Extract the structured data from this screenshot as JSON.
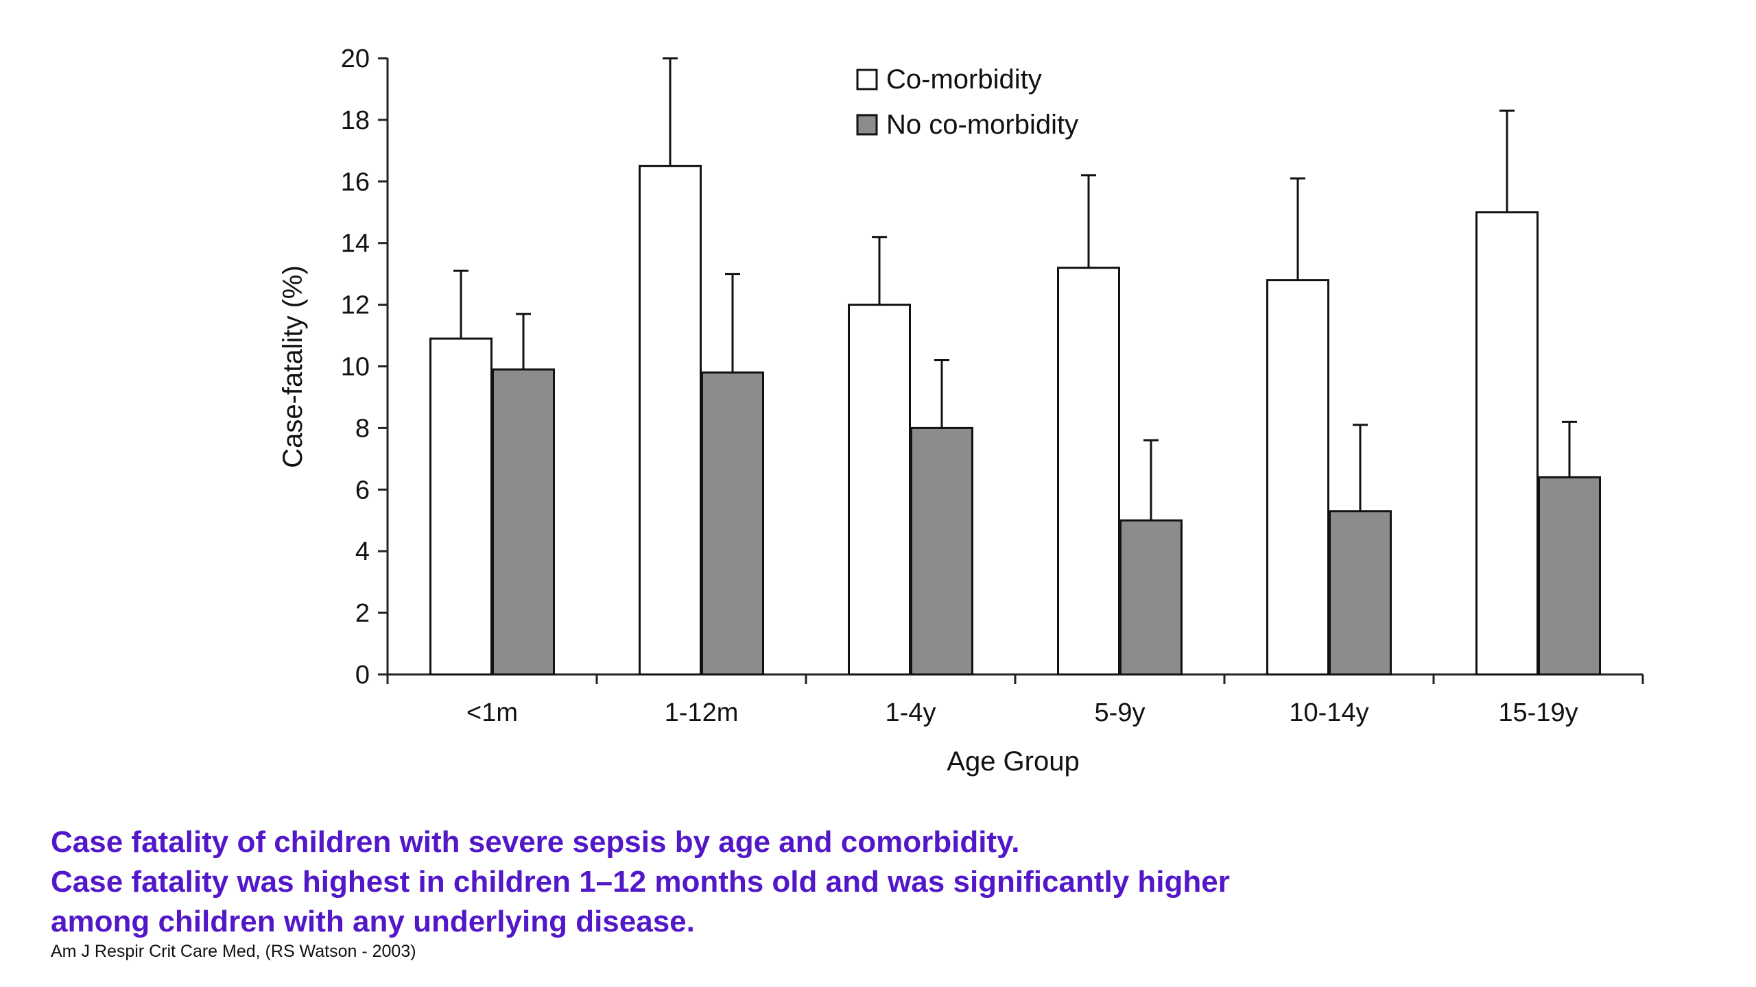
{
  "chart_data": {
    "type": "bar",
    "title": "",
    "xlabel": "Age Group",
    "ylabel": "Case-fatality (%)",
    "ylim": [
      0,
      20
    ],
    "yticks": [
      0,
      2,
      4,
      6,
      8,
      10,
      12,
      14,
      16,
      18,
      20
    ],
    "categories": [
      "<1m",
      "1-12m",
      "1-4y",
      "5-9y",
      "10-14y",
      "15-19y"
    ],
    "series": [
      {
        "name": "Co-morbidity",
        "color": "#ffffff",
        "values": [
          10.9,
          16.5,
          12.0,
          13.2,
          12.8,
          15.0
        ],
        "error_upper": [
          13.1,
          20.0,
          14.2,
          16.2,
          16.1,
          18.3
        ]
      },
      {
        "name": "No co-morbidity",
        "color": "#8c8c8c",
        "values": [
          9.9,
          9.8,
          8.0,
          5.0,
          5.3,
          6.4
        ],
        "error_upper": [
          11.7,
          13.0,
          10.2,
          7.6,
          8.1,
          8.2
        ]
      }
    ],
    "legend_position": "top-center",
    "grid": false
  },
  "caption": {
    "line1": "Case fatality of children with severe sepsis by age and comorbidity.",
    "line2": "Case fatality was highest in children 1–12 months old and was significantly higher",
    "line3": "among children with any underlying disease.",
    "color": "#5217c8"
  },
  "source": "Am J Respir Crit Care Med, (RS Watson - 2003)"
}
